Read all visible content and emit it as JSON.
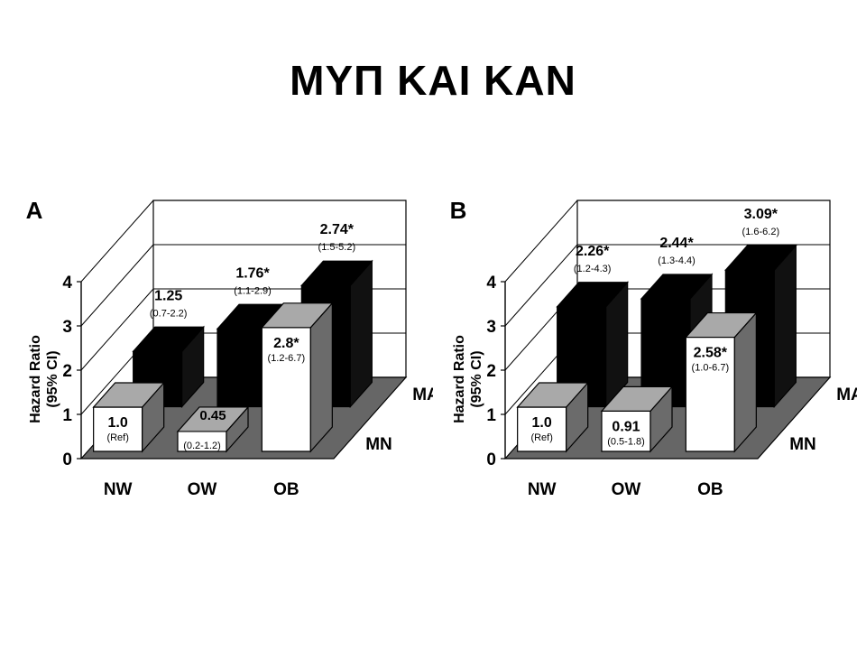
{
  "slide": {
    "title": "ΜΥΠ ΚΑΙ ΚΑΝ"
  },
  "chart_data": [
    {
      "type": "bar",
      "panel_label": "A",
      "categories": [
        "NW",
        "OW",
        "OB"
      ],
      "series_depth_labels": [
        "MA",
        "MN"
      ],
      "ylabel": "Hazard Ratio (95% CI)",
      "ylim": [
        0,
        4
      ],
      "yticks": [
        "0",
        "1",
        "2",
        "3",
        "4"
      ],
      "grid": true,
      "series": [
        {
          "name": "MA",
          "values": [
            1.25,
            1.76,
            2.74
          ],
          "value_labels": [
            "1.25",
            "1.76*",
            "2.74*"
          ],
          "ci_labels": [
            "(0.7-2.2)",
            "(1.1-2.9)",
            "(1.5-5.2)"
          ]
        },
        {
          "name": "MN",
          "values": [
            1.0,
            0.45,
            2.8
          ],
          "value_labels": [
            "1.0",
            "0.45",
            "2.8*"
          ],
          "ci_labels": [
            "(Ref)",
            "(0.2-1.2)",
            "(1.2-6.7)"
          ]
        }
      ]
    },
    {
      "type": "bar",
      "panel_label": "B",
      "categories": [
        "NW",
        "OW",
        "OB"
      ],
      "series_depth_labels": [
        "MA",
        "MN"
      ],
      "ylabel": "Hazard Ratio (95% CI)",
      "ylim": [
        0,
        4
      ],
      "yticks": [
        "0",
        "1",
        "2",
        "3",
        "4"
      ],
      "grid": true,
      "series": [
        {
          "name": "MA",
          "values": [
            2.26,
            2.44,
            3.09
          ],
          "value_labels": [
            "2.26*",
            "2.44*",
            "3.09*"
          ],
          "ci_labels": [
            "(1.2-4.3)",
            "(1.3-4.4)",
            "(1.6-6.2)"
          ]
        },
        {
          "name": "MN",
          "values": [
            1.0,
            0.91,
            2.58
          ],
          "value_labels": [
            "1.0",
            "0.91",
            "2.58*"
          ],
          "ci_labels": [
            "(Ref)",
            "(0.5-1.8)",
            "(1.0-6.7)"
          ]
        }
      ]
    }
  ],
  "colors": {
    "ma_front": "#000000",
    "ma_top": "#000000",
    "ma_side": "#111111",
    "mn_top": "#a9a9a9",
    "mn_side": "#6b6b6b",
    "floor": "#666666",
    "grid": "#000000"
  }
}
